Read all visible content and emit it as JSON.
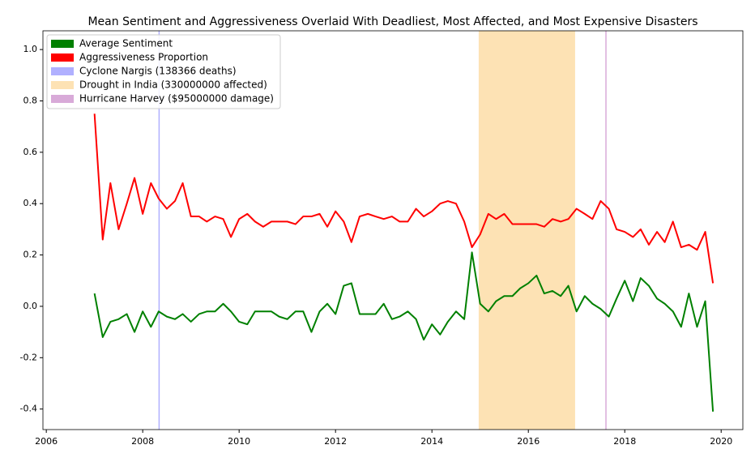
{
  "chart_data": {
    "type": "line",
    "title": "Mean Sentiment and Aggressiveness Overlaid With Deadliest, Most Affected, and Most Expensive Disasters",
    "x": [
      2007,
      2007.17,
      2007.33,
      2007.5,
      2007.67,
      2007.83,
      2008,
      2008.17,
      2008.33,
      2008.5,
      2008.67,
      2008.83,
      2009,
      2009.17,
      2009.33,
      2009.5,
      2009.67,
      2009.83,
      2010,
      2010.17,
      2010.33,
      2010.5,
      2010.67,
      2010.83,
      2011,
      2011.17,
      2011.33,
      2011.5,
      2011.67,
      2011.83,
      2012,
      2012.17,
      2012.33,
      2012.5,
      2012.67,
      2012.83,
      2013,
      2013.17,
      2013.33,
      2013.5,
      2013.67,
      2013.83,
      2014,
      2014.17,
      2014.33,
      2014.5,
      2014.67,
      2014.83,
      2015,
      2015.17,
      2015.33,
      2015.5,
      2015.67,
      2015.83,
      2016,
      2016.17,
      2016.33,
      2016.5,
      2016.67,
      2016.83,
      2017,
      2017.17,
      2017.33,
      2017.5,
      2017.67,
      2017.83,
      2018,
      2018.17,
      2018.33,
      2018.5,
      2018.67,
      2018.83,
      2019,
      2019.17,
      2019.33,
      2019.5,
      2019.67,
      2019.83
    ],
    "series": [
      {
        "name": "Average Sentiment",
        "color": "#008000",
        "values": [
          0.05,
          -0.12,
          -0.06,
          -0.05,
          -0.03,
          -0.1,
          -0.02,
          -0.08,
          -0.02,
          -0.04,
          -0.05,
          -0.03,
          -0.06,
          -0.03,
          -0.02,
          -0.02,
          0.01,
          -0.02,
          -0.06,
          -0.07,
          -0.02,
          -0.02,
          -0.02,
          -0.04,
          -0.05,
          -0.02,
          -0.02,
          -0.1,
          -0.02,
          0.01,
          -0.03,
          0.08,
          0.09,
          -0.03,
          -0.03,
          -0.03,
          0.01,
          -0.05,
          -0.04,
          -0.02,
          -0.05,
          -0.13,
          -0.07,
          -0.11,
          -0.06,
          -0.02,
          -0.05,
          0.21,
          0.01,
          -0.02,
          0.02,
          0.04,
          0.04,
          0.07,
          0.09,
          0.12,
          0.05,
          0.06,
          0.04,
          0.08,
          -0.02,
          0.04,
          0.01,
          -0.01,
          -0.04,
          0.03,
          0.1,
          0.02,
          0.11,
          0.08,
          0.03,
          0.01,
          -0.02,
          -0.08,
          0.05,
          -0.08,
          0.02,
          -0.41
        ]
      },
      {
        "name": "Aggressiveness Proportion",
        "color": "#ff0000",
        "values": [
          0.75,
          0.26,
          0.48,
          0.3,
          0.4,
          0.5,
          0.36,
          0.48,
          0.42,
          0.38,
          0.41,
          0.48,
          0.35,
          0.35,
          0.33,
          0.35,
          0.34,
          0.27,
          0.34,
          0.36,
          0.33,
          0.31,
          0.33,
          0.33,
          0.33,
          0.32,
          0.35,
          0.35,
          0.36,
          0.31,
          0.37,
          0.33,
          0.25,
          0.35,
          0.36,
          0.35,
          0.34,
          0.35,
          0.33,
          0.33,
          0.38,
          0.35,
          0.37,
          0.4,
          0.41,
          0.4,
          0.33,
          0.23,
          0.28,
          0.36,
          0.34,
          0.36,
          0.32,
          0.32,
          0.32,
          0.32,
          0.31,
          0.34,
          0.33,
          0.34,
          0.38,
          0.36,
          0.34,
          0.41,
          0.38,
          0.3,
          0.29,
          0.27,
          0.3,
          0.24,
          0.29,
          0.25,
          0.33,
          0.23,
          0.24,
          0.22,
          0.29,
          0.09
        ]
      }
    ],
    "spans": [
      {
        "name": "Cyclone Nargis (138366 deaths)",
        "color": "#b0b0ff",
        "x": [
          2008.34
        ]
      },
      {
        "name": "Drought in India (330000000 affected)",
        "color": "#fde2b4",
        "x": [
          2014.97,
          2016.97
        ]
      },
      {
        "name": "Hurricane Harvey ($95000000 damage)",
        "color": "#d8aad8",
        "x": [
          2017.61
        ]
      }
    ],
    "xlim": [
      2005.93,
      2020.45
    ],
    "xticks": [
      2006,
      2008,
      2010,
      2012,
      2014,
      2016,
      2018,
      2020
    ],
    "ylim": [
      -0.48,
      1.073
    ],
    "yticks": [
      -0.4,
      -0.2,
      {
        "value": 0,
        "label": "0.0"
      },
      0.2,
      0.4,
      0.6,
      0.8,
      {
        "value": 1,
        "label": "1.0"
      }
    ],
    "legend": "upper left",
    "grid": false
  }
}
